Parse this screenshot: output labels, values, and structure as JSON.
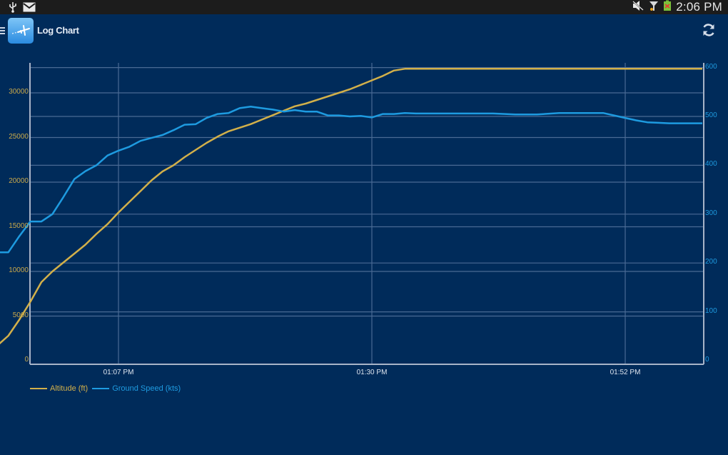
{
  "statusbar": {
    "left_icons": [
      "usb-icon",
      "gmail-icon"
    ],
    "right_icons": [
      "mute-icon",
      "signal-icon",
      "battery-charging-icon"
    ],
    "time": "2:06 PM"
  },
  "actionbar": {
    "title": "Log Chart",
    "menu_icon": "drawer-menu-icon",
    "app_icon": "airplane-app-icon",
    "refresh_icon": "refresh-icon"
  },
  "colors": {
    "background": "#002b5a",
    "altitude": "#d2b04a",
    "ground_speed": "#1e9be0",
    "grid": "#4a6a94",
    "axis": "#a8b4c8"
  },
  "chart_data": {
    "type": "line",
    "title": "",
    "xlabel": "",
    "x_tick_labels": [
      "01:07 PM",
      "01:30 PM",
      "01:52 PM"
    ],
    "x_range_minutes_from_first_tick": [
      -13,
      53
    ],
    "y_left": {
      "label": "Altitude (ft)",
      "ticks": [
        0,
        5000,
        10000,
        15000,
        20000,
        25000,
        30000
      ],
      "range": [
        0,
        33000
      ]
    },
    "y_right": {
      "label": "Ground Speed (kts)",
      "ticks": [
        0,
        100,
        200,
        300,
        400,
        500,
        600
      ],
      "range": [
        0,
        600
      ]
    },
    "grid": true,
    "legend_position": "bottom-left",
    "x_minutes": [
      -13,
      -12,
      -11,
      -10,
      -9,
      -8,
      -7,
      -6,
      -5,
      -4,
      -3,
      -2,
      -1,
      0,
      1,
      2,
      3,
      4,
      5,
      6,
      7,
      8,
      9,
      10,
      11,
      12,
      13,
      14,
      15,
      16,
      17,
      18,
      19,
      20,
      21,
      22,
      23,
      24,
      25,
      26,
      27,
      28,
      30,
      32,
      34,
      36,
      38,
      40,
      42,
      44,
      46,
      47,
      48,
      49,
      50,
      51,
      52,
      53
    ],
    "series": [
      {
        "name": "Altitude (ft)",
        "axis": "left",
        "color": "#d2b04a",
        "values": [
          0,
          800,
          1700,
          2800,
          4600,
          6600,
          8800,
          10000,
          11000,
          12000,
          13000,
          14200,
          15300,
          16600,
          17800,
          19000,
          20200,
          21200,
          21900,
          22800,
          23600,
          24400,
          25100,
          25700,
          26100,
          26500,
          27000,
          27500,
          28000,
          28500,
          28800,
          29200,
          29600,
          30000,
          30400,
          30900,
          31400,
          31900,
          32500,
          32700,
          32700,
          32700,
          32700,
          32700,
          32700,
          32700,
          32700,
          32700,
          32700,
          32700,
          32700,
          32700,
          32700,
          32700,
          32700,
          32700,
          32700,
          32700
        ]
      },
      {
        "name": "Ground Speed (kts)",
        "axis": "right",
        "color": "#1e9be0",
        "values": [
          152,
          180,
          222,
          222,
          255,
          285,
          285,
          300,
          335,
          372,
          388,
          400,
          420,
          430,
          438,
          450,
          456,
          462,
          472,
          483,
          484,
          497,
          505,
          507,
          517,
          520,
          517,
          514,
          510,
          513,
          510,
          510,
          502,
          502,
          500,
          501,
          498,
          505,
          505,
          507,
          506,
          506,
          506,
          506,
          506,
          504,
          504,
          507,
          507,
          507,
          497,
          492,
          488,
          487,
          486,
          486,
          486,
          486
        ]
      }
    ]
  },
  "legend": {
    "items": [
      {
        "label": "Altitude (ft)",
        "color": "#d2b04a"
      },
      {
        "label": "Ground Speed (kts)",
        "color": "#1e9be0"
      }
    ]
  }
}
